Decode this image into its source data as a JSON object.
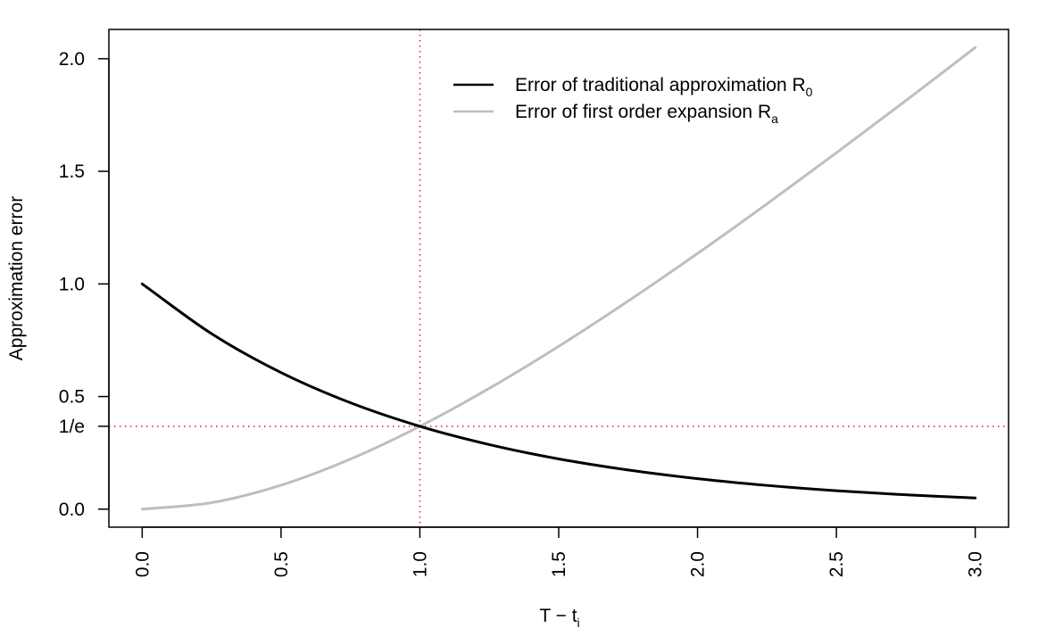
{
  "chart_data": {
    "type": "line",
    "xlabel": "T − t",
    "xlabel_sub": "i",
    "ylabel": "Approximation error",
    "xlim": [
      -0.12,
      3.12
    ],
    "ylim": [
      -0.08,
      2.13
    ],
    "x_ticks": [
      {
        "value": 0.0,
        "label": "0.0"
      },
      {
        "value": 0.5,
        "label": "0.5"
      },
      {
        "value": 1.0,
        "label": "1.0"
      },
      {
        "value": 1.5,
        "label": "1.5"
      },
      {
        "value": 2.0,
        "label": "2.0"
      },
      {
        "value": 2.5,
        "label": "2.5"
      },
      {
        "value": 3.0,
        "label": "3.0"
      }
    ],
    "y_ticks": [
      {
        "value": 0.0,
        "label": "0.0"
      },
      {
        "value": 0.3679,
        "label": "1/e"
      },
      {
        "value": 0.5,
        "label": "0.5"
      },
      {
        "value": 1.0,
        "label": "1.0"
      },
      {
        "value": 1.5,
        "label": "1.5"
      },
      {
        "value": 2.0,
        "label": "2.0"
      }
    ],
    "reference_lines": [
      {
        "orientation": "vertical",
        "value": 1.0,
        "color": "#e8272f",
        "style": "dotted"
      },
      {
        "orientation": "horizontal",
        "value": 0.3679,
        "color": "#e8272f",
        "style": "dotted"
      }
    ],
    "legend_position": "top-right",
    "series": [
      {
        "name": "Error of traditional approximation R",
        "name_sub": "0",
        "color": "#000000",
        "x": [
          0.0,
          0.25,
          0.5,
          0.75,
          1.0,
          1.25,
          1.5,
          1.75,
          2.0,
          2.25,
          2.5,
          2.75,
          3.0
        ],
        "values": [
          1.0,
          0.7788,
          0.6065,
          0.4724,
          0.3679,
          0.2865,
          0.2231,
          0.1738,
          0.1353,
          0.1054,
          0.0821,
          0.0639,
          0.0498
        ]
      },
      {
        "name": "Error of first order expansion R",
        "name_sub": "a",
        "color": "#bebebe",
        "x": [
          0.0,
          0.25,
          0.5,
          0.75,
          1.0,
          1.25,
          1.5,
          1.75,
          2.0,
          2.25,
          2.5,
          2.75,
          3.0
        ],
        "values": [
          0.0,
          0.0288,
          0.1065,
          0.2224,
          0.3679,
          0.5365,
          0.7231,
          0.9238,
          1.1353,
          1.3554,
          1.5821,
          1.8139,
          2.0498
        ]
      }
    ]
  }
}
